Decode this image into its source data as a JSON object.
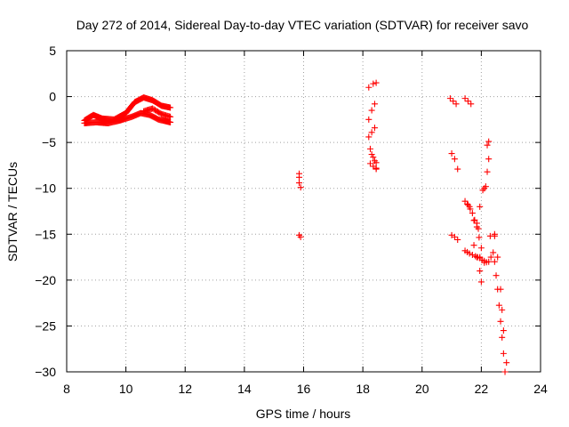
{
  "chart_data": {
    "type": "scatter",
    "title": "Day 272 of 2014, Sidereal Day-to-day VTEC variation (SDTVAR) for receiver savo",
    "xlabel": "GPS time / hours",
    "ylabel": "SDTVAR / TECUs",
    "xlim": [
      8,
      24
    ],
    "ylim": [
      -30,
      5
    ],
    "xticks": [
      8,
      10,
      12,
      14,
      16,
      18,
      20,
      22,
      24
    ],
    "yticks": [
      5,
      0,
      -5,
      -10,
      -15,
      -20,
      -25,
      -30
    ],
    "grid": true,
    "marker": "plus",
    "color": "#ff0000",
    "tracks": [
      {
        "name": "arc-upper",
        "points": [
          [
            8.6,
            -2.6
          ],
          [
            8.9,
            -2.0
          ],
          [
            9.2,
            -2.4
          ],
          [
            9.6,
            -2.5
          ],
          [
            10.0,
            -1.8
          ],
          [
            10.3,
            -0.6
          ],
          [
            10.6,
            -0.1
          ],
          [
            10.9,
            -0.4
          ],
          [
            11.2,
            -1.0
          ],
          [
            11.5,
            -1.2
          ]
        ],
        "step": 0.03
      },
      {
        "name": "arc-lower",
        "points": [
          [
            8.6,
            -2.9
          ],
          [
            9.0,
            -2.8
          ],
          [
            9.4,
            -2.9
          ],
          [
            9.8,
            -2.6
          ],
          [
            10.2,
            -2.2
          ],
          [
            10.5,
            -1.8
          ],
          [
            10.8,
            -2.0
          ],
          [
            11.1,
            -2.5
          ],
          [
            11.5,
            -2.8
          ]
        ],
        "step": 0.03
      },
      {
        "name": "arc-return",
        "points": [
          [
            10.6,
            -1.6
          ],
          [
            10.9,
            -1.3
          ],
          [
            11.2,
            -1.9
          ],
          [
            11.5,
            -2.2
          ]
        ],
        "step": 0.04
      },
      {
        "name": "t16-a",
        "points": [
          [
            15.85,
            -8.4
          ],
          [
            15.85,
            -8.8
          ]
        ],
        "step": 0.2
      },
      {
        "name": "t16-b",
        "points": [
          [
            15.85,
            -9.4
          ],
          [
            15.9,
            -9.9
          ]
        ],
        "step": 0.2
      },
      {
        "name": "t16-c",
        "points": [
          [
            15.85,
            -15.1
          ],
          [
            15.9,
            -15.3
          ]
        ],
        "step": 0.2
      },
      {
        "name": "t18-top",
        "points": [
          [
            18.2,
            1.0
          ],
          [
            18.35,
            1.4
          ],
          [
            18.45,
            1.5
          ]
        ],
        "step": 0.12
      },
      {
        "name": "t18-a",
        "points": [
          [
            18.2,
            -2.5
          ],
          [
            18.3,
            -1.5
          ],
          [
            18.4,
            -0.8
          ]
        ],
        "step": 0.12
      },
      {
        "name": "t18-b",
        "points": [
          [
            18.2,
            -4.4
          ],
          [
            18.3,
            -3.9
          ],
          [
            18.4,
            -3.4
          ]
        ],
        "step": 0.12
      },
      {
        "name": "t18-c",
        "points": [
          [
            18.25,
            -5.7
          ],
          [
            18.35,
            -6.6
          ],
          [
            18.45,
            -7.2
          ]
        ],
        "step": 0.12
      },
      {
        "name": "t18-d",
        "points": [
          [
            18.3,
            -6.3
          ],
          [
            18.4,
            -7.0
          ],
          [
            18.45,
            -7.9
          ]
        ],
        "step": 0.12
      },
      {
        "name": "t18-e",
        "points": [
          [
            18.25,
            -7.3
          ],
          [
            18.35,
            -7.6
          ],
          [
            18.45,
            -7.8
          ]
        ],
        "step": 0.12
      },
      {
        "name": "t21-a",
        "points": [
          [
            20.95,
            -0.2
          ],
          [
            21.05,
            -0.5
          ],
          [
            21.15,
            -0.8
          ]
        ],
        "step": 0.15
      },
      {
        "name": "t21-b",
        "points": [
          [
            21.45,
            -0.2
          ],
          [
            21.55,
            -0.5
          ],
          [
            21.65,
            -0.8
          ]
        ],
        "step": 0.15
      },
      {
        "name": "t21-c",
        "points": [
          [
            21.0,
            -6.2
          ],
          [
            21.1,
            -6.8
          ],
          [
            21.2,
            -7.9
          ]
        ],
        "step": 0.15
      },
      {
        "name": "t21-d",
        "points": [
          [
            21.0,
            -15.1
          ],
          [
            21.1,
            -15.3
          ],
          [
            21.2,
            -15.6
          ]
        ],
        "step": 0.15
      },
      {
        "name": "t21-e",
        "points": [
          [
            21.45,
            -11.4
          ],
          [
            21.6,
            -12.0
          ],
          [
            21.75,
            -13.5
          ],
          [
            21.9,
            -14.4
          ]
        ],
        "step": 0.1
      },
      {
        "name": "t21-f",
        "points": [
          [
            21.45,
            -16.8
          ],
          [
            21.6,
            -17.1
          ],
          [
            21.8,
            -17.4
          ],
          [
            21.95,
            -17.6
          ]
        ],
        "step": 0.09
      },
      {
        "name": "t21-g",
        "points": [
          [
            21.55,
            -11.8
          ],
          [
            21.7,
            -12.7
          ],
          [
            21.85,
            -14.2
          ],
          [
            22.0,
            -16.5
          ],
          [
            22.1,
            -17.9
          ]
        ],
        "step": 0.09
      },
      {
        "name": "t21-h",
        "points": [
          [
            21.75,
            -16.2
          ],
          [
            21.85,
            -17.5
          ],
          [
            21.95,
            -19.0
          ],
          [
            22.0,
            -20.2
          ]
        ],
        "step": 0.09
      },
      {
        "name": "t22-a",
        "points": [
          [
            21.85,
            -13.8
          ],
          [
            21.95,
            -12.0
          ],
          [
            22.05,
            -10.2
          ],
          [
            22.15,
            -9.8
          ]
        ],
        "step": 0.09
      },
      {
        "name": "t22-b",
        "points": [
          [
            22.1,
            -10.0
          ],
          [
            22.2,
            -8.2
          ],
          [
            22.25,
            -6.8
          ]
        ],
        "step": 0.1
      },
      {
        "name": "t22-c",
        "points": [
          [
            22.2,
            -5.3
          ],
          [
            22.25,
            -4.9
          ]
        ],
        "step": 0.2
      },
      {
        "name": "t22-d",
        "points": [
          [
            21.95,
            -17.5
          ],
          [
            22.1,
            -18.1
          ],
          [
            22.25,
            -18.0
          ],
          [
            22.4,
            -17.0
          ],
          [
            22.45,
            -15.2
          ]
        ],
        "step": 0.09
      },
      {
        "name": "t22-e",
        "points": [
          [
            22.3,
            -15.2
          ],
          [
            22.45,
            -18.0
          ],
          [
            22.55,
            -21.0
          ],
          [
            22.65,
            -24.5
          ],
          [
            22.75,
            -28.0
          ],
          [
            22.8,
            -30.0
          ]
        ],
        "step": 0.1
      },
      {
        "name": "t22-f",
        "points": [
          [
            22.45,
            -15.0
          ],
          [
            22.55,
            -17.5
          ],
          [
            22.65,
            -21.0
          ],
          [
            22.75,
            -25.5
          ],
          [
            22.85,
            -29.0
          ]
        ],
        "step": 0.12
      }
    ]
  }
}
